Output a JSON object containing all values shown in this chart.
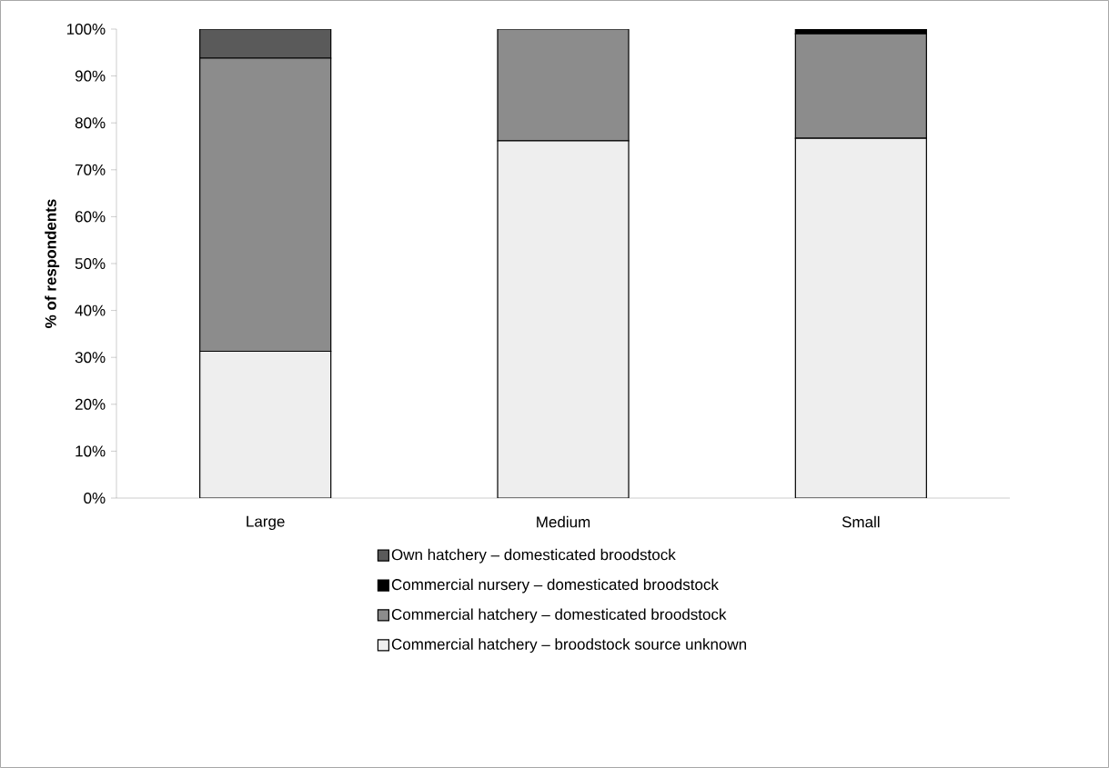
{
  "chart_data": {
    "type": "bar",
    "stacked": true,
    "ylabel": "% of respondents",
    "categories": [
      "Large",
      "Medium",
      "Small"
    ],
    "series": [
      {
        "name": "Commercial hatchery – broodstock source unknown",
        "color": "#eeeeee",
        "values": [
          31.3,
          76.2,
          76.7
        ]
      },
      {
        "name": "Commercial hatchery – domesticated broodstock",
        "color": "#8c8c8c",
        "values": [
          62.5,
          23.8,
          22.3
        ]
      },
      {
        "name": "Commercial nursery – domesticated broodstock",
        "color": "#000000",
        "values": [
          0,
          0,
          1.0
        ]
      },
      {
        "name": "Own hatchery – domesticated broodstock",
        "color": "#5a5a5a",
        "values": [
          6.2,
          0,
          0
        ]
      }
    ],
    "ylim": [
      0,
      100
    ],
    "yticks": [
      {
        "value": 0,
        "label": "0%"
      },
      {
        "value": 10,
        "label": "10%"
      },
      {
        "value": 20,
        "label": "20%"
      },
      {
        "value": 30,
        "label": "30%"
      },
      {
        "value": 40,
        "label": "40%"
      },
      {
        "value": 50,
        "label": "50%"
      },
      {
        "value": 60,
        "label": "60%"
      },
      {
        "value": 70,
        "label": "70%"
      },
      {
        "value": 80,
        "label": "80%"
      },
      {
        "value": 90,
        "label": "90%"
      },
      {
        "value": 100,
        "label": "100%"
      }
    ],
    "legend": "bottom",
    "grid": false
  }
}
